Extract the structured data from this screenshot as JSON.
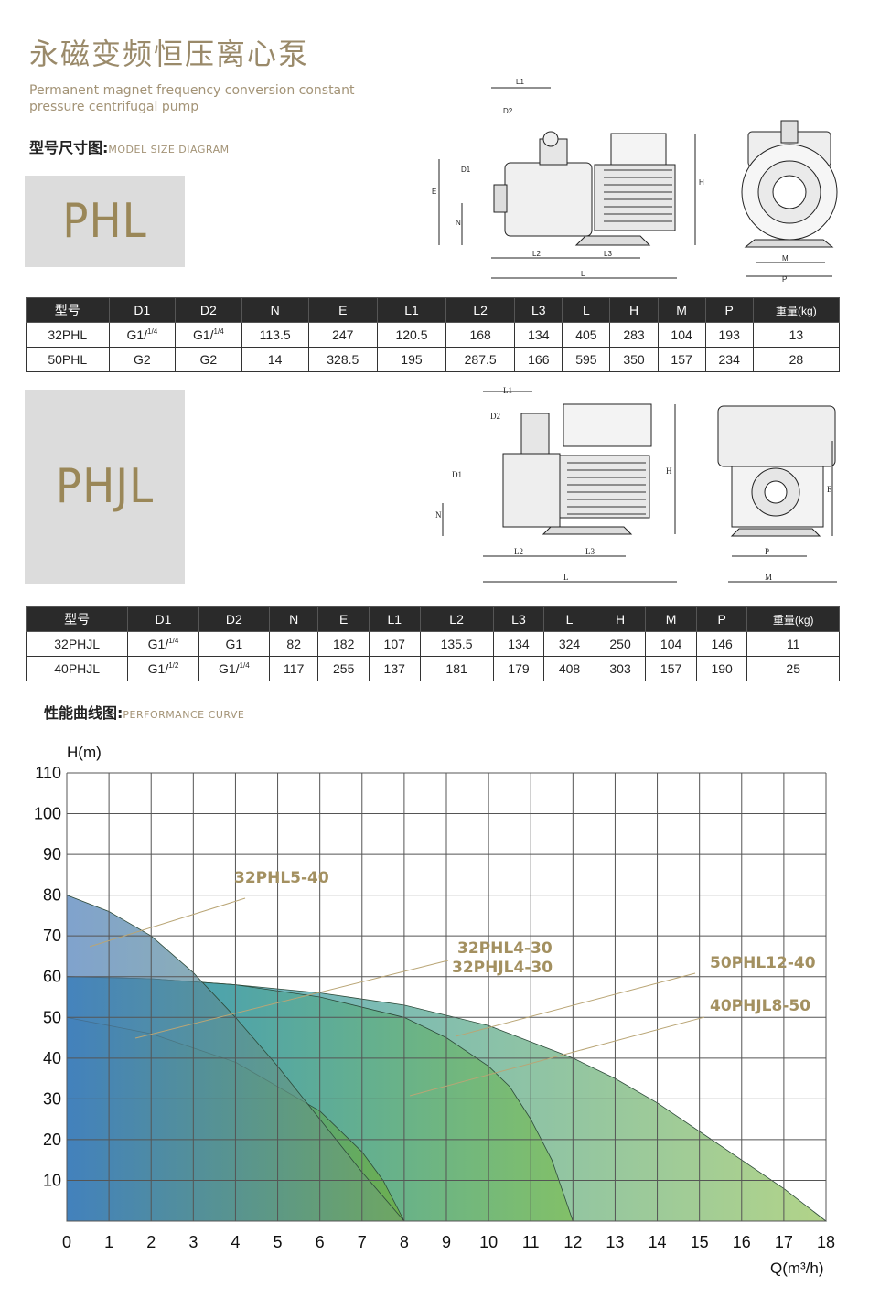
{
  "header": {
    "title_cn": "永磁变频恒压离心泵",
    "title_en_line1": "Permanent magnet frequency conversion constant",
    "title_en_line2": "pressure centrifugal pump"
  },
  "size_section": {
    "label_cn": "型号尺寸图:",
    "label_en": "MODEL SIZE DIAGRAM"
  },
  "models": {
    "phl": "PHL",
    "phjl": "PHJL"
  },
  "diagram_labels": {
    "L1": "L1",
    "D1": "D1",
    "D2": "D2",
    "E": "E",
    "N": "N",
    "L2": "L2",
    "L3": "L3",
    "L": "L",
    "H": "H",
    "M": "M",
    "P": "P"
  },
  "table_headers": [
    "型号",
    "D1",
    "D2",
    "N",
    "E",
    "L1",
    "L2",
    "L3",
    "L",
    "H",
    "M",
    "P",
    "重量(kg)"
  ],
  "phl_table": [
    [
      "32PHL",
      "G1/",
      "G1/",
      "113.5",
      "247",
      "120.5",
      "168",
      "134",
      "405",
      "283",
      "104",
      "193",
      "13"
    ],
    [
      "50PHL",
      "G2",
      "G2",
      "14",
      "328.5",
      "195",
      "287.5",
      "166",
      "595",
      "350",
      "157",
      "234",
      "28"
    ]
  ],
  "phl_sups": [
    [
      "",
      "1/4",
      "1/4"
    ],
    [
      "",
      "",
      ""
    ]
  ],
  "phjl_table": [
    [
      "32PHJL",
      "G1/",
      "G1",
      "82",
      "182",
      "107",
      "135.5",
      "134",
      "324",
      "250",
      "104",
      "146",
      "11"
    ],
    [
      "40PHJL",
      "G1/",
      "G1/",
      "117",
      "255",
      "137",
      "181",
      "179",
      "408",
      "303",
      "157",
      "190",
      "25"
    ]
  ],
  "phjl_sups": [
    [
      "",
      "1/4",
      ""
    ],
    [
      "",
      "1/2",
      "1/4"
    ]
  ],
  "perf_section": {
    "label_cn": "性能曲线图:",
    "label_en": "PERFORMANCE CURVE"
  },
  "chart_data": {
    "type": "area",
    "ylabel": "H(m)",
    "xlabel": "Q(m³/h)",
    "xlim": [
      0,
      18
    ],
    "ylim": [
      0,
      110
    ],
    "xticks": [
      0,
      1,
      2,
      3,
      4,
      5,
      6,
      7,
      8,
      9,
      10,
      11,
      12,
      13,
      14,
      15,
      16,
      17,
      18
    ],
    "yticks": [
      10,
      20,
      30,
      40,
      50,
      60,
      70,
      80,
      90,
      100,
      110
    ],
    "grid": true,
    "series": [
      {
        "name": "40PHJL8-50",
        "x": [
          0,
          2,
          4,
          6,
          8,
          10,
          11,
          12,
          13,
          14,
          15,
          16,
          17,
          18
        ],
        "y": [
          60,
          59.5,
          58,
          56,
          53,
          48,
          44,
          40,
          35,
          29,
          22,
          15,
          8,
          0
        ]
      },
      {
        "name": "50PHL12-40",
        "x": [
          0,
          2,
          4,
          6,
          8,
          9,
          10,
          10.5,
          11,
          11.5,
          12
        ],
        "y": [
          60,
          59.5,
          58,
          55,
          50,
          45,
          38,
          33,
          25,
          15,
          0
        ]
      },
      {
        "name": "32PHL4-30",
        "x": [
          0,
          2,
          4,
          6,
          7,
          7.5,
          8
        ],
        "y": [
          50,
          46,
          39,
          27,
          17,
          10,
          0
        ]
      },
      {
        "name": "32PHL5-40",
        "x": [
          0,
          1,
          2,
          3,
          4,
          5,
          6,
          7,
          8
        ],
        "y": [
          80,
          76,
          70,
          61,
          50,
          38,
          25,
          12,
          0
        ]
      }
    ],
    "annotations": [
      "32PHL5-40",
      "32PHL4-30",
      "32PHJL4-30",
      "50PHL12-40",
      "40PHJL8-50"
    ],
    "colors": {
      "accent": "#a39060",
      "grid": "#555555"
    }
  }
}
